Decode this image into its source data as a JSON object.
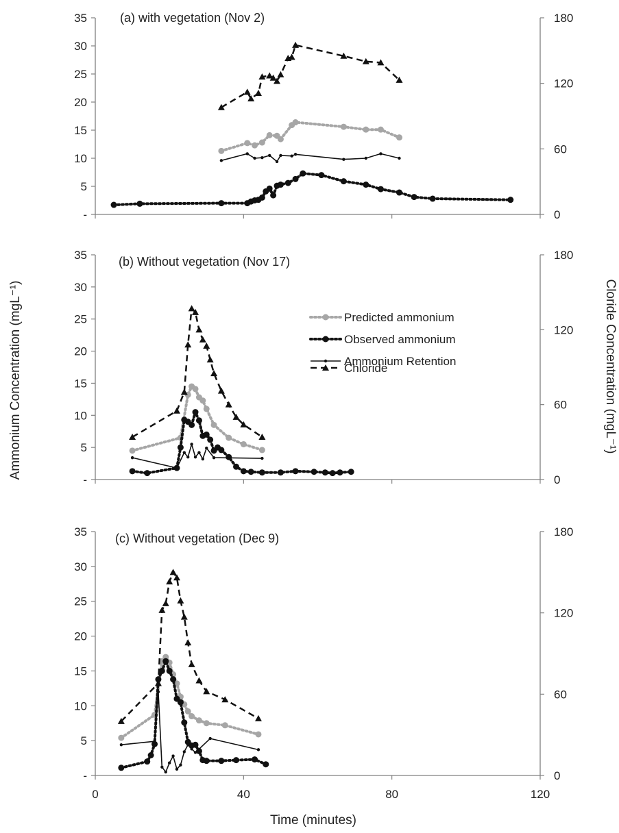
{
  "axes": {
    "left_label": "Ammonium Concentration (mgL⁻¹)",
    "right_label": "Cloride Concentration (mgL⁻¹)",
    "x_label": "Time (minutes)",
    "left_ticks": [
      "35",
      "30",
      "25",
      "20",
      "15",
      "10",
      "5",
      "-"
    ],
    "right_ticks": [
      "180",
      "120",
      "60",
      "0"
    ],
    "x_ticks": [
      "0",
      "40",
      "80",
      "120"
    ]
  },
  "legend": [
    {
      "key": "predicted",
      "label": "Predicted ammonium"
    },
    {
      "key": "observed",
      "label": "Observed ammonium"
    },
    {
      "key": "retention",
      "label": "Ammonium Retention"
    },
    {
      "key": "chloride",
      "label": "Chloride"
    }
  ],
  "colors": {
    "predicted": "#a6a6a6",
    "observed": "#111111",
    "retention": "#111111",
    "chloride": "#111111",
    "axis": "#808080"
  },
  "chart_data": [
    {
      "type": "line",
      "title": "(a) with vegetation (Nov 2)",
      "xlim": [
        0,
        120
      ],
      "ylim": [
        0,
        35
      ],
      "y2lim": [
        0,
        180
      ],
      "series": [
        {
          "name": "Predicted ammonium",
          "axis": "left",
          "x": [
            34,
            41,
            43,
            45,
            47,
            49,
            50,
            53,
            54,
            67,
            73,
            77,
            82
          ],
          "y": [
            11.3,
            12.7,
            12.3,
            12.8,
            14.1,
            14.0,
            13.4,
            15.9,
            16.4,
            15.6,
            15.1,
            15.1,
            13.7
          ]
        },
        {
          "name": "Observed ammonium",
          "axis": "left",
          "x": [
            5,
            12,
            34,
            41,
            42,
            43,
            44,
            45,
            46,
            47,
            48,
            49,
            50,
            52,
            54,
            56,
            61,
            67,
            73,
            77,
            82,
            86,
            91,
            112
          ],
          "y": [
            1.7,
            1.9,
            2.0,
            2.0,
            2.3,
            2.5,
            2.6,
            3.0,
            4.1,
            4.6,
            3.4,
            5.1,
            5.3,
            5.6,
            6.3,
            7.3,
            7.0,
            5.9,
            5.3,
            4.5,
            3.9,
            3.1,
            2.8,
            2.6
          ]
        },
        {
          "name": "Ammonium Retention",
          "axis": "left",
          "x": [
            34,
            41,
            43,
            45,
            47,
            49,
            50,
            53,
            54,
            67,
            73,
            77,
            82
          ],
          "y": [
            9.6,
            10.8,
            10.0,
            10.1,
            10.5,
            9.4,
            10.5,
            10.4,
            10.7,
            9.8,
            10.0,
            10.8,
            10.0
          ]
        },
        {
          "name": "Chloride",
          "axis": "right",
          "x": [
            34,
            41,
            42,
            44,
            45,
            47,
            48,
            49,
            50,
            52,
            53,
            54,
            67,
            73,
            77,
            82
          ],
          "y": [
            98,
            112,
            106,
            111,
            126,
            127,
            125,
            122,
            128,
            143,
            144,
            155,
            145,
            140,
            139,
            123
          ]
        }
      ]
    },
    {
      "type": "line",
      "title": "(b) Without vegetation (Nov 17)",
      "xlim": [
        0,
        120
      ],
      "ylim": [
        0,
        35
      ],
      "y2lim": [
        0,
        180
      ],
      "series": [
        {
          "name": "Predicted ammonium",
          "axis": "left",
          "x": [
            10,
            23,
            25,
            26,
            27,
            28,
            29,
            30,
            32,
            36,
            40,
            45
          ],
          "y": [
            4.5,
            6.5,
            13.2,
            14.5,
            14.1,
            12.8,
            12.3,
            11.0,
            8.5,
            6.5,
            5.5,
            4.6
          ]
        },
        {
          "name": "Observed ammonium",
          "axis": "left",
          "x": [
            10,
            14,
            22,
            23,
            24,
            25,
            26,
            27,
            28,
            29,
            30,
            31,
            32,
            33,
            34,
            36,
            38,
            40,
            42,
            45,
            50,
            54,
            59,
            62,
            64,
            66,
            69
          ],
          "y": [
            1.3,
            1.0,
            1.8,
            5.0,
            9.3,
            9.0,
            8.5,
            10.5,
            9.2,
            6.8,
            7.0,
            6.2,
            4.5,
            5.0,
            4.6,
            3.5,
            2.0,
            1.3,
            1.2,
            1.1,
            1.1,
            1.3,
            1.2,
            1.1,
            1.0,
            1.1,
            1.2
          ]
        },
        {
          "name": "Ammonium Retention",
          "axis": "left",
          "x": [
            10,
            22,
            24,
            25,
            26,
            27,
            28,
            29,
            30,
            32,
            45
          ],
          "y": [
            3.4,
            1.8,
            4.2,
            3.5,
            5.5,
            3.5,
            4.2,
            3.2,
            4.9,
            3.4,
            3.3
          ]
        },
        {
          "name": "Chloride",
          "axis": "right",
          "x": [
            10,
            22,
            24,
            25,
            26,
            27,
            28,
            29,
            30,
            31,
            32,
            34,
            36,
            38,
            40,
            45
          ],
          "y": [
            34,
            55,
            70,
            108,
            137,
            134,
            120,
            112,
            107,
            96,
            85,
            71,
            60,
            50,
            44,
            34
          ]
        }
      ]
    },
    {
      "type": "line",
      "title": "(c) Without vegetation (Dec 9)",
      "xlim": [
        0,
        120
      ],
      "ylim": [
        0,
        35
      ],
      "y2lim": [
        0,
        180
      ],
      "series": [
        {
          "name": "Predicted ammonium",
          "axis": "left",
          "x": [
            7,
            16,
            18,
            19,
            20,
            21,
            22,
            23,
            24,
            25,
            26,
            28,
            30,
            35,
            44
          ],
          "y": [
            5.4,
            8.7,
            16.4,
            17.0,
            16.2,
            14.5,
            13.2,
            11.3,
            10.2,
            9.2,
            8.5,
            7.9,
            7.5,
            7.2,
            5.9
          ]
        },
        {
          "name": "Observed ammonium",
          "axis": "left",
          "x": [
            7,
            14,
            15,
            16,
            17,
            18,
            19,
            20,
            21,
            22,
            23,
            24,
            25,
            26,
            27,
            28,
            29,
            30,
            34,
            38,
            43,
            46
          ],
          "y": [
            1.1,
            2.0,
            2.9,
            4.5,
            13.8,
            15.0,
            16.4,
            15.0,
            13.8,
            11.0,
            10.5,
            7.6,
            4.8,
            4.3,
            4.4,
            3.5,
            2.2,
            2.1,
            2.1,
            2.2,
            2.3,
            1.6
          ]
        },
        {
          "name": "Ammonium Retention",
          "axis": "left",
          "x": [
            7,
            16,
            17,
            18,
            19,
            20,
            21,
            22,
            23,
            24,
            25,
            26,
            27,
            31,
            44
          ],
          "y": [
            4.4,
            4.9,
            12.0,
            1.2,
            0.5,
            1.8,
            2.8,
            0.9,
            1.5,
            3.4,
            4.4,
            3.8,
            3.3,
            5.3,
            3.7
          ]
        },
        {
          "name": "Chloride",
          "axis": "right",
          "x": [
            7,
            17,
            18,
            19,
            20,
            21,
            22,
            23,
            24,
            25,
            26,
            28,
            30,
            35,
            44
          ],
          "y": [
            40,
            68,
            122,
            127,
            143,
            150,
            146,
            129,
            117,
            98,
            82,
            70,
            62,
            56,
            42
          ]
        }
      ]
    }
  ]
}
